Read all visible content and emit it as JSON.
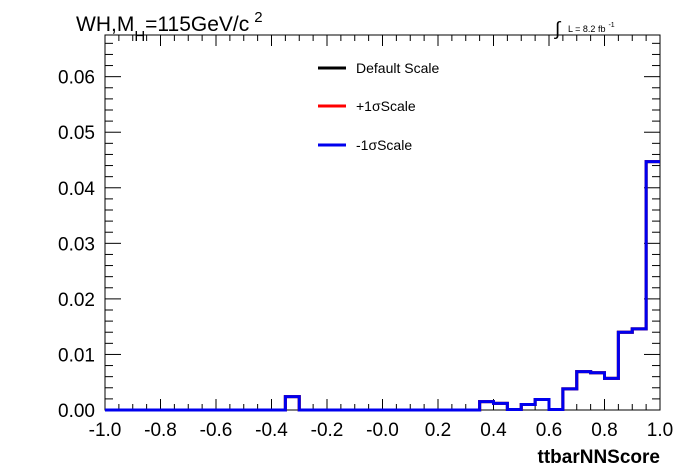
{
  "chart_data": {
    "type": "line",
    "title_main": "WH,M",
    "title_sub": "H",
    "title_rest": "=115GeV/c",
    "title_sup": "2",
    "lumi_integral": "∫",
    "lumi_text": "L = 8.2 fb",
    "lumi_sup": "-1",
    "xlabel": "ttbarNNScore",
    "ylabel": "",
    "xlim": [
      -1.0,
      1.0
    ],
    "ylim": [
      0.0,
      0.0675
    ],
    "grid": false,
    "legend_position": "top-center",
    "x_ticks": [
      "-1.0",
      "-0.8",
      "-0.6",
      "-0.4",
      "-0.2",
      "-0.0",
      "0.2",
      "0.4",
      "0.6",
      "0.8",
      "1.0"
    ],
    "x_tick_values": [
      -1.0,
      -0.8,
      -0.6,
      -0.4,
      -0.2,
      0.0,
      0.2,
      0.4,
      0.6,
      0.8,
      1.0
    ],
    "y_ticks": [
      "0.00",
      "0.01",
      "0.02",
      "0.03",
      "0.04",
      "0.05",
      "0.06"
    ],
    "y_tick_values": [
      0.0,
      0.01,
      0.02,
      0.03,
      0.04,
      0.05,
      0.06
    ],
    "bin_edges": [
      -1.0,
      -0.95,
      -0.9,
      -0.85,
      -0.8,
      -0.75,
      -0.7,
      -0.65,
      -0.6,
      -0.55,
      -0.5,
      -0.45,
      -0.4,
      -0.35,
      -0.3,
      -0.25,
      -0.2,
      -0.15,
      -0.1,
      -0.05,
      0.0,
      0.05,
      0.1,
      0.15,
      0.2,
      0.25,
      0.3,
      0.35,
      0.4,
      0.45,
      0.5,
      0.55,
      0.6,
      0.65,
      0.7,
      0.75,
      0.8,
      0.85,
      0.9,
      0.95,
      1.0
    ],
    "series": [
      {
        "name": "Default Scale",
        "color": "#000000",
        "values": [
          0,
          0,
          0,
          0,
          0,
          0,
          0,
          0,
          0,
          0,
          0,
          0,
          0,
          0.0024,
          0,
          0,
          0,
          0,
          0,
          0,
          0,
          0,
          0,
          0,
          0,
          0,
          0,
          0.0015,
          0.0012,
          0.0001,
          0.001,
          0.0019,
          0.0001,
          0.0038,
          0.0069,
          0.0067,
          0.0057,
          0.014,
          0.0146,
          0.0447
        ]
      },
      {
        "name": "+1σScale",
        "color": "#ff0000",
        "values": [
          0,
          0,
          0,
          0,
          0,
          0,
          0,
          0,
          0,
          0,
          0,
          0,
          0,
          0.0024,
          0,
          0,
          0,
          0,
          0,
          0,
          0,
          0,
          0,
          0,
          0,
          0,
          0,
          0.0015,
          0.0012,
          0.0001,
          0.001,
          0.0019,
          0.0001,
          0.0038,
          0.0069,
          0.0067,
          0.0057,
          0.014,
          0.0146,
          0.0447
        ]
      },
      {
        "name": "-1σScale",
        "color": "#0000ee",
        "values": [
          0,
          0,
          0,
          0,
          0,
          0,
          0,
          0,
          0,
          0,
          0,
          0,
          0,
          0.0024,
          0,
          0,
          0,
          0,
          0,
          0,
          0,
          0,
          0,
          0,
          0,
          0,
          0,
          0.0015,
          0.0012,
          0.0001,
          0.001,
          0.0019,
          0.0001,
          0.0038,
          0.0069,
          0.0067,
          0.0057,
          0.014,
          0.0146,
          0.0447
        ]
      }
    ]
  }
}
